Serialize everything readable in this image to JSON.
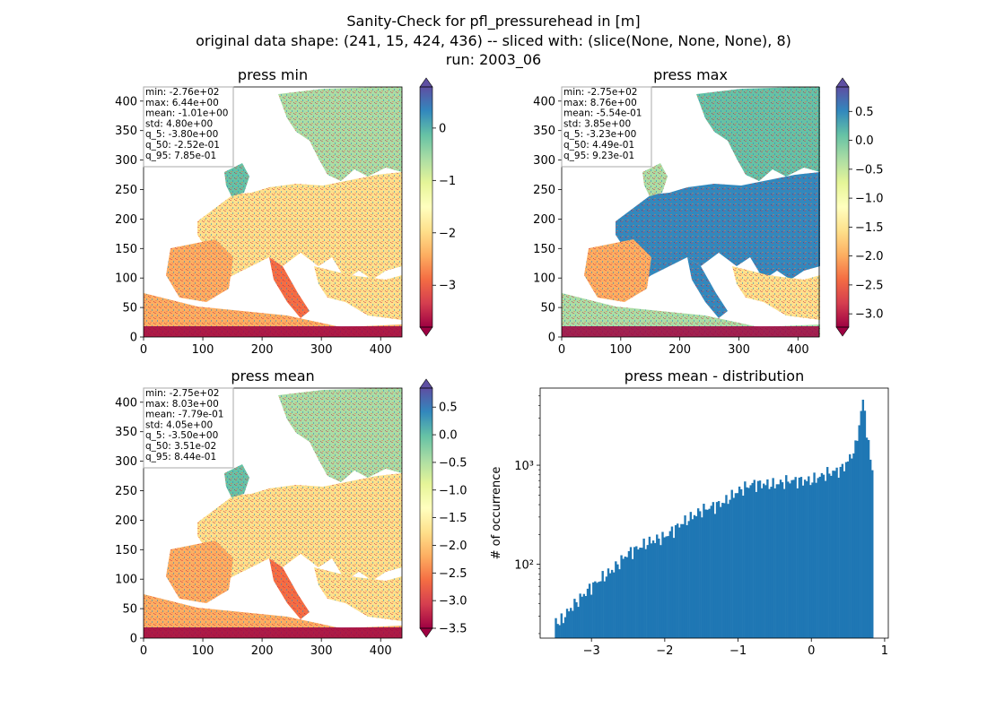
{
  "figure": {
    "title_lines": [
      "Sanity-Check for pfl_pressurehead in [m]",
      "original data shape: (241, 15, 424, 436) -- sliced with: (slice(None, None, None), 8)",
      "run: 2003_06"
    ]
  },
  "chart_data": [
    {
      "type": "heatmap",
      "title": "press min",
      "xlim": [
        0,
        436
      ],
      "ylim": [
        0,
        424
      ],
      "xticks": [
        "0",
        "100",
        "200",
        "300",
        "400"
      ],
      "yticks": [
        "0",
        "50",
        "100",
        "150",
        "200",
        "250",
        "300",
        "350",
        "400"
      ],
      "colormap": "Spectral",
      "colorbar": {
        "range": [
          -3.8,
          0.785
        ],
        "extend": "both",
        "ticks": [
          "0",
          "−1",
          "−2",
          "−3"
        ],
        "tick_values": [
          0,
          -1,
          -2,
          -3
        ]
      },
      "stats": [
        "min: -2.76e+02",
        "max: 6.44e+00",
        "mean: -1.01e+00",
        "std: 4.80e+00",
        "q_5: -3.80e+00",
        "q_50: -2.52e-01",
        "q_95: 7.85e-01"
      ]
    },
    {
      "type": "heatmap",
      "title": "press max",
      "xlim": [
        0,
        436
      ],
      "ylim": [
        0,
        424
      ],
      "xticks": [
        "0",
        "100",
        "200",
        "300",
        "400"
      ],
      "yticks": [
        "0",
        "50",
        "100",
        "150",
        "200",
        "250",
        "300",
        "350",
        "400"
      ],
      "colormap": "Spectral",
      "colorbar": {
        "range": [
          -3.23,
          0.923
        ],
        "extend": "both",
        "ticks": [
          "0.5",
          "0.0",
          "−0.5",
          "−1.0",
          "−1.5",
          "−2.0",
          "−2.5",
          "−3.0"
        ],
        "tick_values": [
          0.5,
          0,
          -0.5,
          -1,
          -1.5,
          -2,
          -2.5,
          -3
        ]
      },
      "stats": [
        "min: -2.75e+02",
        "max: 8.76e+00",
        "mean: -5.54e-01",
        "std: 3.85e+00",
        "q_5: -3.23e+00",
        "q_50: 4.49e-01",
        "q_95: 9.23e-01"
      ]
    },
    {
      "type": "heatmap",
      "title": "press mean",
      "xlim": [
        0,
        436
      ],
      "ylim": [
        0,
        424
      ],
      "xticks": [
        "0",
        "100",
        "200",
        "300",
        "400"
      ],
      "yticks": [
        "0",
        "50",
        "100",
        "150",
        "200",
        "250",
        "300",
        "350",
        "400"
      ],
      "colormap": "Spectral",
      "colorbar": {
        "range": [
          -3.5,
          0.844
        ],
        "extend": "both",
        "ticks": [
          "0.5",
          "0.0",
          "−0.5",
          "−1.0",
          "−1.5",
          "−2.0",
          "−2.5",
          "−3.0",
          "−3.5"
        ],
        "tick_values": [
          0.5,
          0,
          -0.5,
          -1,
          -1.5,
          -2,
          -2.5,
          -3,
          -3.5
        ]
      },
      "stats": [
        "min: -2.75e+02",
        "max: 8.03e+00",
        "mean: -7.79e-01",
        "std: 4.05e+00",
        "q_5: -3.50e+00",
        "q_50: 3.51e-02",
        "q_95: 8.44e-01"
      ]
    },
    {
      "type": "bar",
      "title": "press mean - distribution",
      "ylabel": "# of occurrence",
      "yscale": "log",
      "xlim": [
        -3.7,
        1.05
      ],
      "ylim": [
        18,
        6000
      ],
      "xticks": [
        "−3",
        "−2",
        "−1",
        "0",
        "1"
      ],
      "xtick_values": [
        -3,
        -2,
        -1,
        0,
        1
      ],
      "yticks": [
        "10²",
        "10³"
      ],
      "ytick_values": [
        100,
        1000
      ],
      "color": "#1f77b4",
      "bin_range": [
        -3.5,
        0.844
      ],
      "anchors_x": [
        -3.5,
        -3.45,
        -3.3,
        -3.0,
        -2.7,
        -2.5,
        -2.2,
        -2.0,
        -1.8,
        -1.5,
        -1.2,
        -1.0,
        -0.8,
        -0.5,
        -0.3,
        0.0,
        0.2,
        0.4,
        0.5,
        0.6,
        0.65,
        0.7,
        0.73,
        0.76,
        0.8,
        0.844
      ],
      "anchors_y": [
        30,
        25,
        35,
        60,
        90,
        130,
        170,
        190,
        250,
        350,
        420,
        550,
        650,
        640,
        700,
        700,
        820,
        900,
        1100,
        1500,
        2500,
        4500,
        3500,
        2000,
        1200,
        900
      ]
    }
  ]
}
